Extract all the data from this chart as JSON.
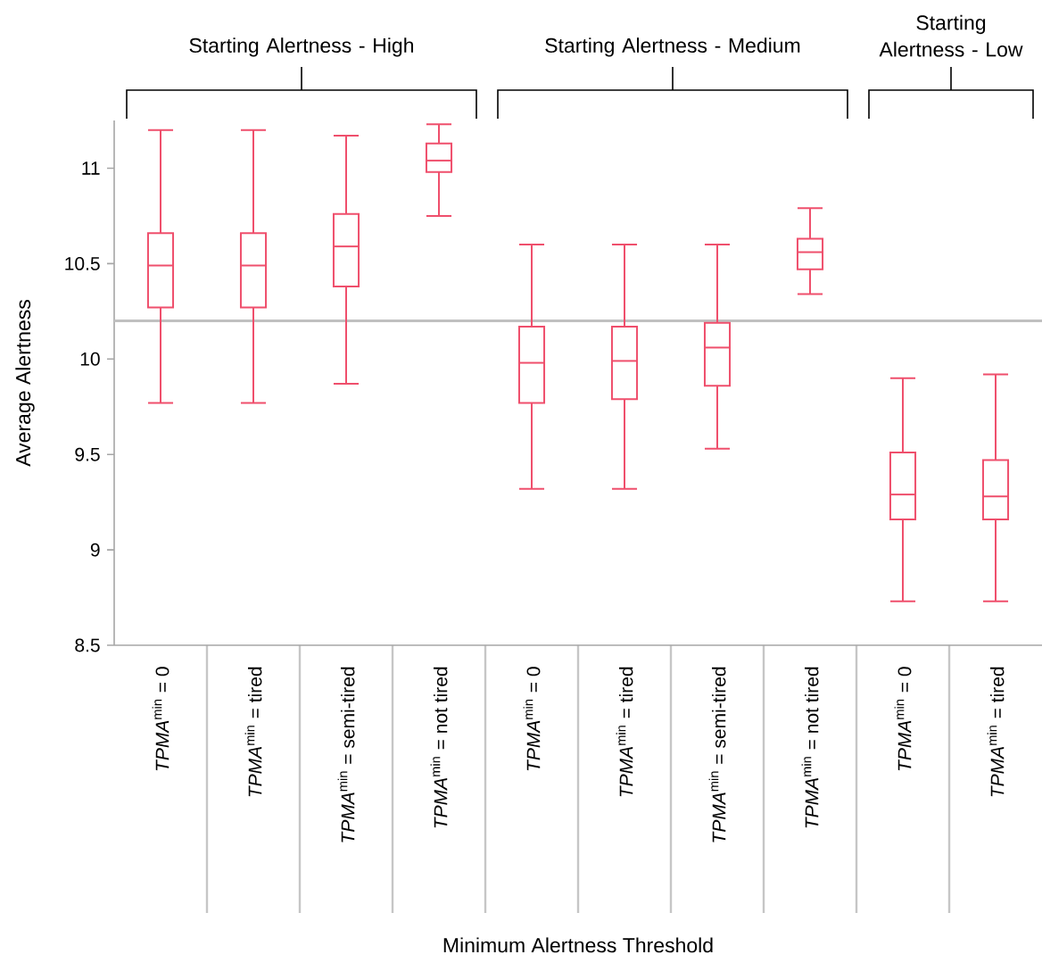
{
  "chart_data": {
    "type": "box",
    "xlabel": "Minimum Alertness Threshold",
    "ylabel": "Average Alertness",
    "categories": [
      "*TPMA*$^{min}$ = 0",
      "*TPMA*$^{min}$ = tired",
      "*TPMA*$^{min}$ = semi-tired",
      "*TPMA*$^{min}$ = not tired",
      "*TPMA*$^{min}$ = 0",
      "*TPMA*$^{min}$ = tired",
      "*TPMA*$^{min}$ = semi-tired",
      "*TPMA*$^{min}$ = not tired",
      "*TPMA*$^{min}$ = 0",
      "*TPMA*$^{min}$ = tired"
    ],
    "annotations": [
      "Starting Alertness - High",
      "Starting Alertness - Medium",
      "Starting Alertness - Low"
    ],
    "ylim": [
      8.5,
      11.25
    ],
    "yticks": [
      8.5,
      9,
      9.5,
      10,
      10.5,
      11
    ],
    "ref_lines": [
      {
        "axis": "y",
        "value": 10.2,
        "color": "#c0c0c0"
      }
    ],
    "series": [
      {
        "color": "#ef4f6c",
        "boxes": [
          {
            "low": 9.77,
            "q1": 10.27,
            "median": 10.49,
            "q3": 10.66,
            "high": 11.2
          },
          {
            "low": 9.77,
            "q1": 10.27,
            "median": 10.49,
            "q3": 10.66,
            "high": 11.2
          },
          {
            "low": 9.87,
            "q1": 10.38,
            "median": 10.59,
            "q3": 10.76,
            "high": 11.17
          },
          {
            "low": 10.75,
            "q1": 10.98,
            "median": 11.04,
            "q3": 11.13,
            "high": 11.23
          },
          {
            "low": 9.32,
            "q1": 9.77,
            "median": 9.98,
            "q3": 10.17,
            "high": 10.6
          },
          {
            "low": 9.32,
            "q1": 9.79,
            "median": 9.99,
            "q3": 10.17,
            "high": 10.6
          },
          {
            "low": 9.53,
            "q1": 9.86,
            "median": 10.06,
            "q3": 10.19,
            "high": 10.6
          },
          {
            "low": 10.34,
            "q1": 10.47,
            "median": 10.56,
            "q3": 10.63,
            "high": 10.79
          },
          {
            "low": 8.73,
            "q1": 9.16,
            "median": 9.29,
            "q3": 9.51,
            "high": 9.9
          },
          {
            "low": 8.73,
            "q1": 9.16,
            "median": 9.28,
            "q3": 9.47,
            "high": 9.92
          }
        ]
      }
    ]
  }
}
